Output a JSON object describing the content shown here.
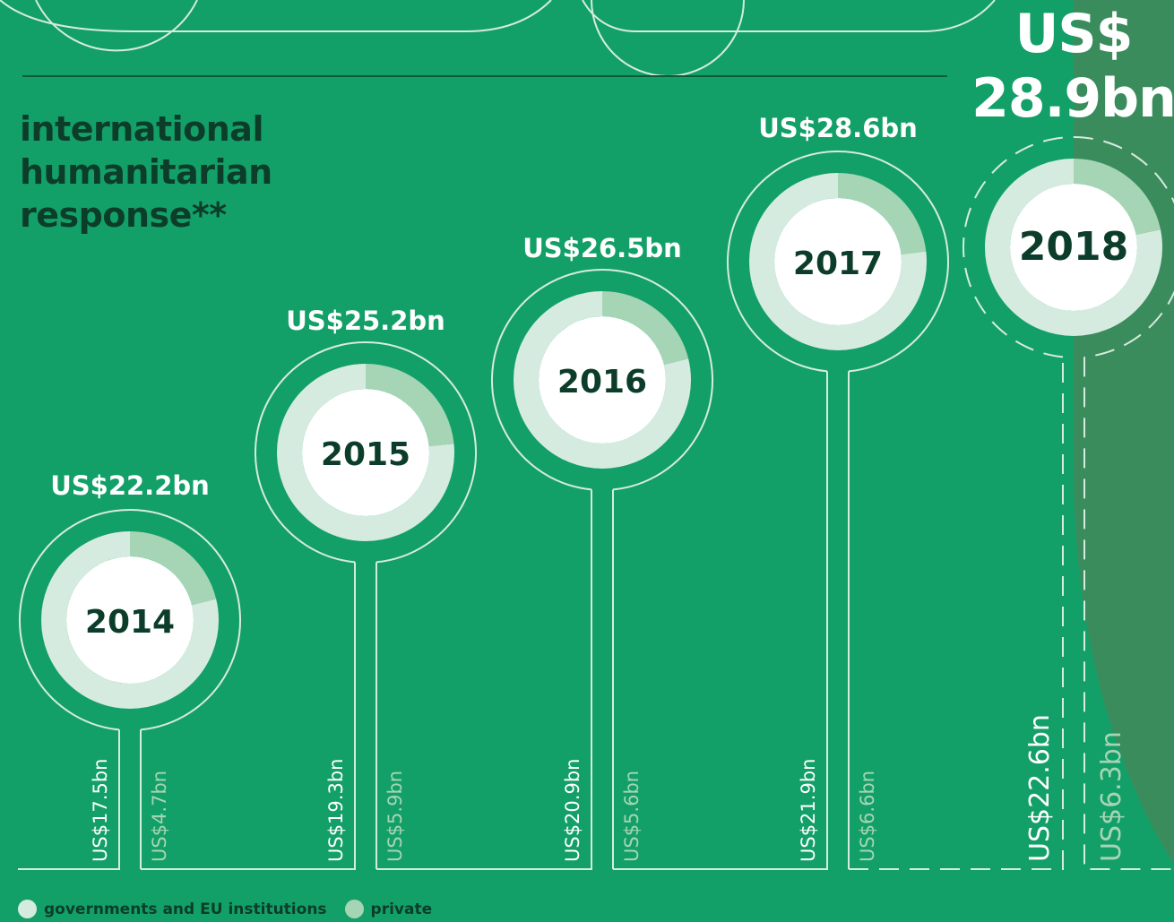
{
  "chart_data": {
    "type": "donut",
    "title": "international humanitarian response**",
    "categories": [
      "2014",
      "2015",
      "2016",
      "2017",
      "2018"
    ],
    "series": [
      {
        "name": "governments and EU institutions",
        "color": "#d6ebdf",
        "values": [
          17.5,
          19.3,
          20.9,
          21.9,
          22.6
        ],
        "value_labels": [
          "US$17.5bn",
          "US$19.3bn",
          "US$20.9bn",
          "US$21.9bn",
          "US$22.6bn"
        ]
      },
      {
        "name": "private",
        "color": "#a6d5b5",
        "values": [
          4.7,
          5.9,
          5.6,
          6.6,
          6.3
        ],
        "value_labels": [
          "US$4.7bn",
          "US$5.9bn",
          "US$5.6bn",
          "US$6.6bn",
          "US$6.3bn"
        ]
      }
    ],
    "totals": [
      22.2,
      25.2,
      26.5,
      28.6,
      28.9
    ],
    "total_labels": [
      "US$22.2bn",
      "US$25.2bn",
      "US$26.5bn",
      "US$28.6bn",
      "US$ 28.9bn"
    ]
  }
}
